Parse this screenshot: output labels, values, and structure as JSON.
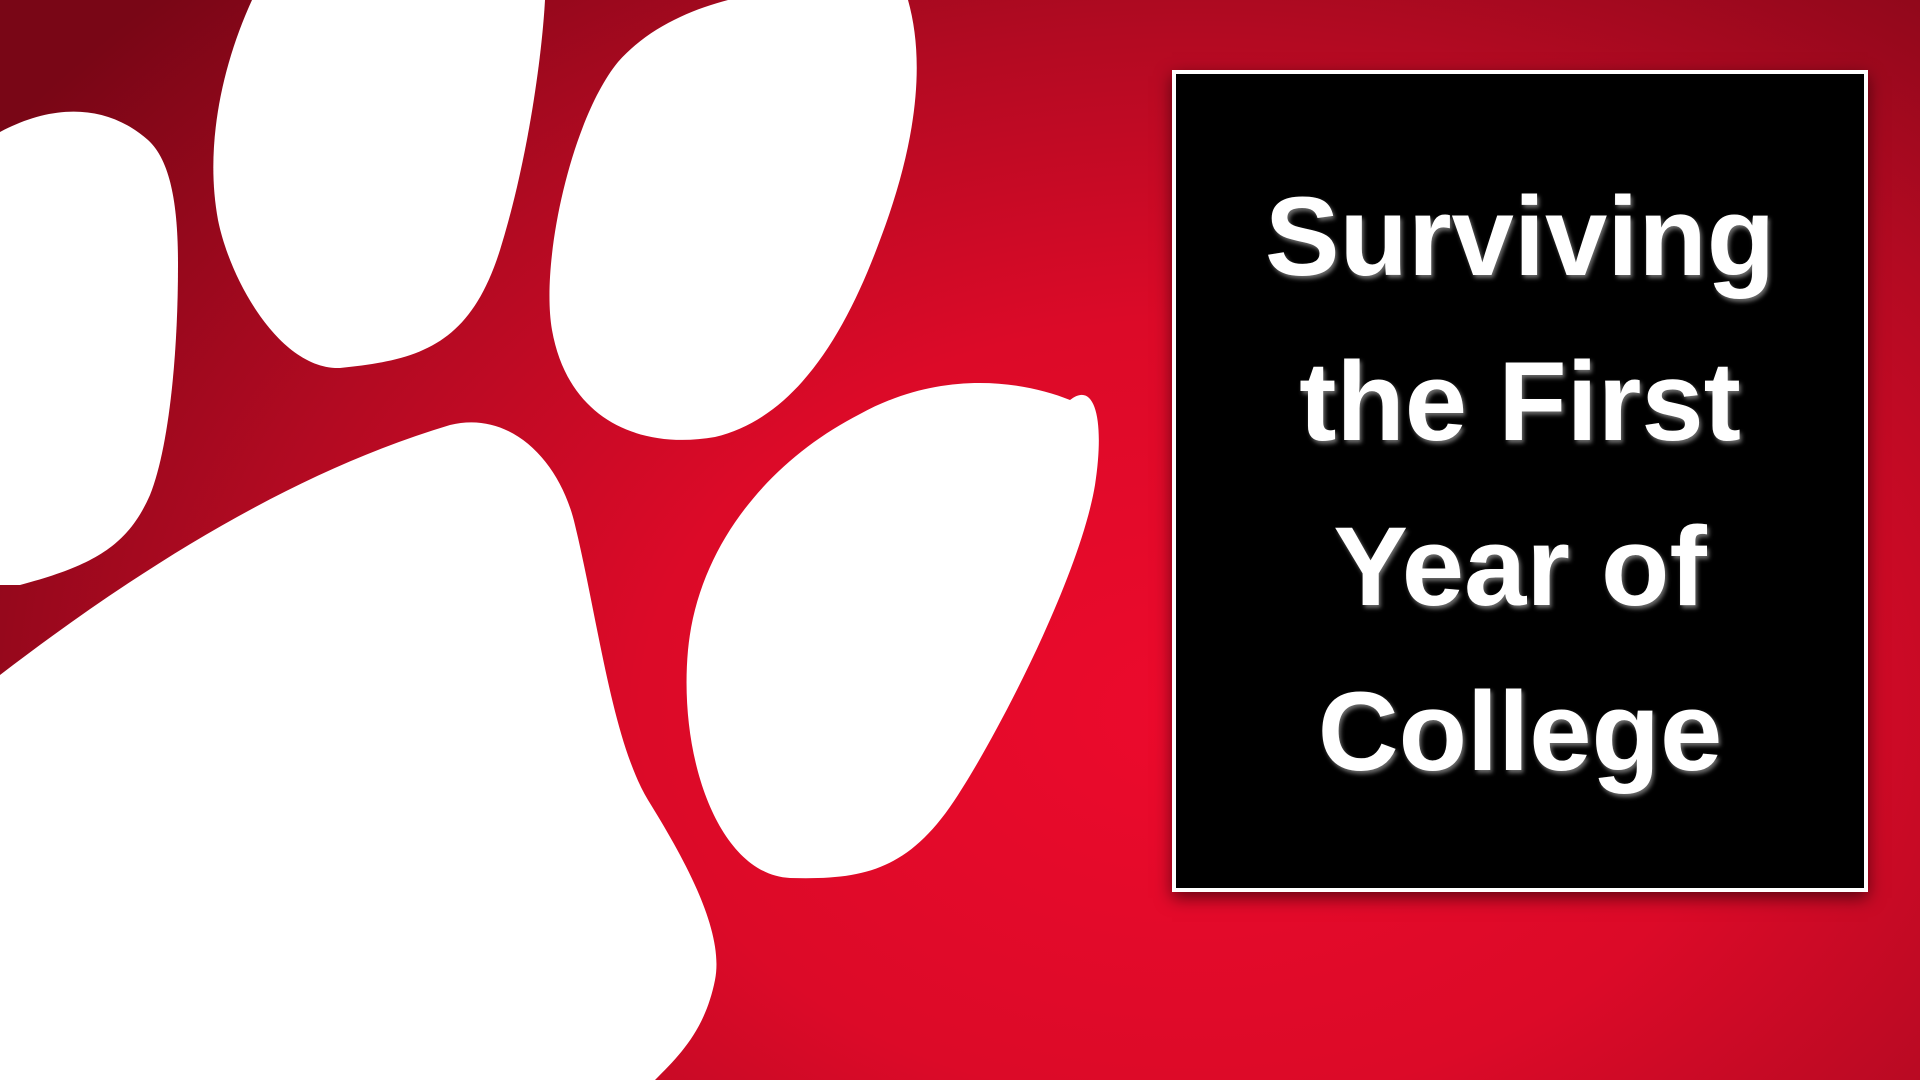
{
  "slide": {
    "title": "Surviving the First Year of College",
    "background_color": "#e30a2a",
    "box_color": "#000000",
    "text_color": "#ffffff",
    "graphic": "paw-print-icon"
  }
}
